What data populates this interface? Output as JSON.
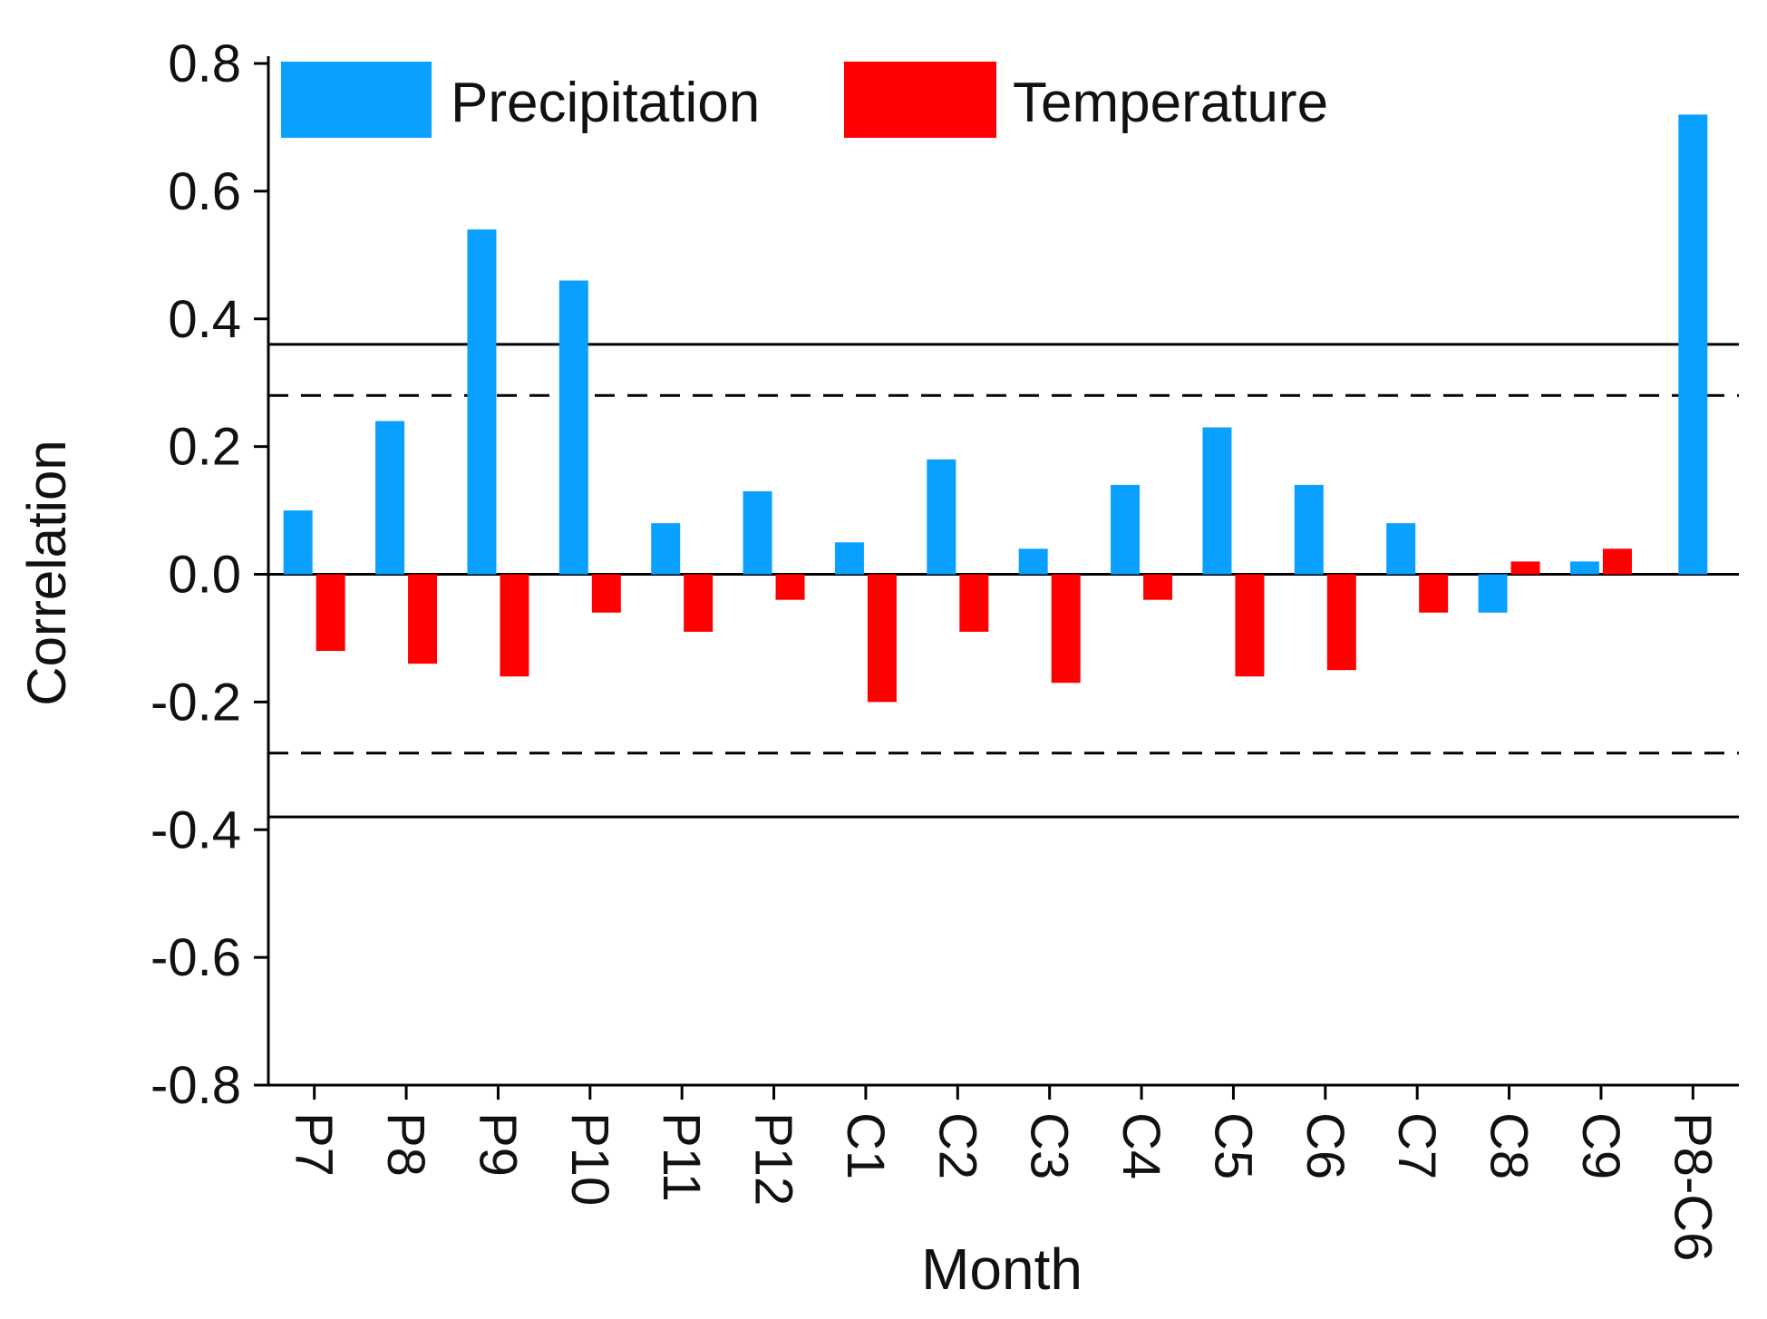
{
  "chart_data": {
    "type": "bar",
    "xlabel": "Month",
    "ylabel": "Correlation",
    "ylim": [
      -0.8,
      0.8
    ],
    "yticks": [
      -0.8,
      -0.6,
      -0.4,
      -0.2,
      0.0,
      0.2,
      0.4,
      0.6,
      0.8
    ],
    "ytick_labels": [
      "-0.8",
      "-0.6",
      "-0.4",
      "-0.2",
      "0.0",
      "0.2",
      "0.4",
      "0.6",
      "0.8"
    ],
    "categories": [
      "P7",
      "P8",
      "P9",
      "P10",
      "P11",
      "P12",
      "C1",
      "C2",
      "C3",
      "C4",
      "C5",
      "C6",
      "C7",
      "C8",
      "C9",
      "P8-C6"
    ],
    "series": [
      {
        "name": "Precipitation",
        "color": "#0aa0ff",
        "values": [
          0.1,
          0.24,
          0.54,
          0.46,
          0.08,
          0.13,
          0.05,
          0.18,
          0.04,
          0.14,
          0.23,
          0.14,
          0.08,
          -0.06,
          0.02,
          0.72
        ]
      },
      {
        "name": "Temperature",
        "color": "#ff0000",
        "values": [
          -0.12,
          -0.14,
          -0.16,
          -0.06,
          -0.09,
          -0.04,
          -0.2,
          -0.09,
          -0.17,
          -0.04,
          -0.16,
          -0.15,
          -0.06,
          0.02,
          0.04,
          null
        ]
      }
    ],
    "reference_lines": [
      {
        "value": 0.36,
        "style": "solid"
      },
      {
        "value": 0.28,
        "style": "dashed"
      },
      {
        "value": 0.0,
        "style": "solid"
      },
      {
        "value": -0.28,
        "style": "dashed"
      },
      {
        "value": -0.38,
        "style": "solid"
      }
    ],
    "legend": {
      "placement": "top",
      "entries": [
        "Precipitation",
        "Temperature"
      ]
    }
  }
}
